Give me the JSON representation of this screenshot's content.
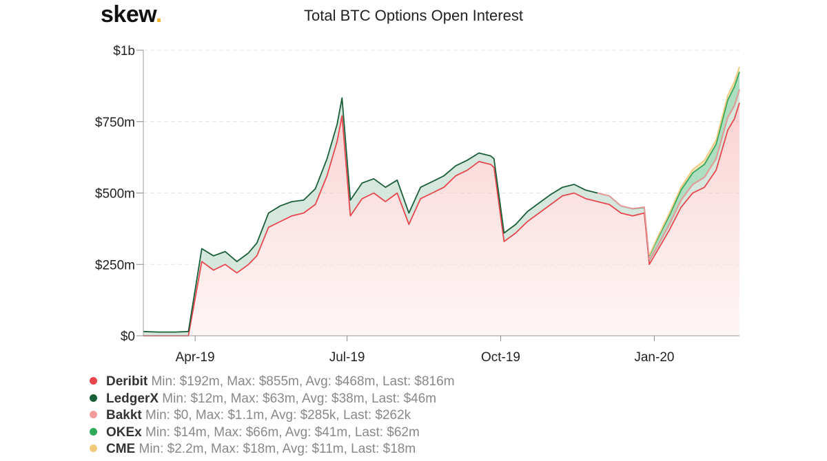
{
  "brand": {
    "logo_text": "skew",
    "logo_dot": ".",
    "dot_color": "#f0b429"
  },
  "chart_data": {
    "type": "area",
    "title": "Total BTC Options Open Interest",
    "stacked": true,
    "y_ticks": [
      "$0",
      "$250m",
      "$500m",
      "$750m",
      "$1b"
    ],
    "ylim": [
      0,
      1000
    ],
    "y_unit": "$m",
    "x_ticks": [
      "Apr-19",
      "Jul-19",
      "Oct-19",
      "Jan-20"
    ],
    "grid": "horizontal dashed",
    "legend_position": "bottom-left",
    "x": [
      "2019-03-01",
      "2019-03-10",
      "2019-03-20",
      "2019-03-28",
      "2019-04-05",
      "2019-04-12",
      "2019-04-19",
      "2019-04-26",
      "2019-05-03",
      "2019-05-08",
      "2019-05-15",
      "2019-05-22",
      "2019-05-29",
      "2019-06-05",
      "2019-06-12",
      "2019-06-19",
      "2019-06-25",
      "2019-06-28",
      "2019-07-03",
      "2019-07-10",
      "2019-07-17",
      "2019-07-24",
      "2019-07-31",
      "2019-08-07",
      "2019-08-14",
      "2019-08-21",
      "2019-08-28",
      "2019-09-04",
      "2019-09-11",
      "2019-09-18",
      "2019-09-25",
      "2019-09-27",
      "2019-10-03",
      "2019-10-10",
      "2019-10-17",
      "2019-10-24",
      "2019-10-31",
      "2019-11-07",
      "2019-11-14",
      "2019-11-21",
      "2019-11-28",
      "2019-12-05",
      "2019-12-12",
      "2019-12-19",
      "2019-12-26",
      "2019-12-29",
      "2020-01-03",
      "2020-01-10",
      "2020-01-17",
      "2020-01-24",
      "2020-01-31",
      "2020-02-07",
      "2020-02-14",
      "2020-02-18",
      "2020-02-21"
    ],
    "series": [
      {
        "name": "Deribit",
        "color": "#e8464c",
        "values": [
          0,
          0,
          0,
          0,
          260,
          230,
          250,
          220,
          250,
          280,
          380,
          400,
          420,
          430,
          460,
          560,
          680,
          770,
          420,
          480,
          500,
          470,
          500,
          390,
          480,
          500,
          520,
          560,
          580,
          610,
          600,
          590,
          330,
          360,
          400,
          430,
          460,
          490,
          500,
          480,
          470,
          460,
          430,
          420,
          430,
          250,
          300,
          370,
          450,
          500,
          520,
          580,
          720,
          760,
          816
        ]
      },
      {
        "name": "LedgerX",
        "color": "#1a5e38",
        "values": [
          15,
          13,
          13,
          15,
          45,
          50,
          45,
          40,
          40,
          45,
          50,
          55,
          50,
          45,
          55,
          60,
          60,
          63,
          55,
          55,
          50,
          50,
          45,
          40,
          40,
          40,
          40,
          35,
          35,
          30,
          30,
          30,
          30,
          30,
          35,
          35,
          35,
          30,
          30,
          30,
          30,
          30,
          25,
          25,
          20,
          15,
          15,
          20,
          25,
          30,
          35,
          40,
          45,
          46,
          46
        ]
      },
      {
        "name": "Bakkt",
        "color": "#f29b9b",
        "values": [
          0,
          0,
          0,
          0,
          0,
          0,
          0,
          0,
          0,
          0,
          0,
          0,
          0,
          0,
          0,
          0,
          0,
          0,
          0,
          0,
          0,
          0,
          0,
          0,
          0,
          0,
          0,
          0,
          0,
          0,
          0,
          0,
          0,
          0,
          0,
          0,
          0,
          0,
          0,
          0,
          0.1,
          0.2,
          0.3,
          0.5,
          0.8,
          1.1,
          0.5,
          0.4,
          0.3,
          0.3,
          0.3,
          0.3,
          0.3,
          0.26,
          0.262
        ]
      },
      {
        "name": "OKEx",
        "color": "#2fa85a",
        "values": [
          0,
          0,
          0,
          0,
          0,
          0,
          0,
          0,
          0,
          0,
          0,
          0,
          0,
          0,
          0,
          0,
          0,
          0,
          0,
          0,
          0,
          0,
          0,
          0,
          0,
          0,
          0,
          0,
          0,
          0,
          0,
          0,
          0,
          0,
          0,
          0,
          0,
          0,
          0,
          0,
          0,
          0,
          0,
          0,
          0,
          14,
          25,
          30,
          35,
          40,
          45,
          50,
          60,
          66,
          62
        ]
      },
      {
        "name": "CME",
        "color": "#f0c97a",
        "values": [
          0,
          0,
          0,
          0,
          0,
          0,
          0,
          0,
          0,
          0,
          0,
          0,
          0,
          0,
          0,
          0,
          0,
          0,
          0,
          0,
          0,
          0,
          0,
          0,
          0,
          0,
          0,
          0,
          0,
          0,
          0,
          0,
          0,
          0,
          0,
          0,
          0,
          0,
          0,
          0,
          0,
          0,
          0,
          0,
          0,
          2.2,
          5,
          8,
          10,
          12,
          14,
          15,
          16,
          18,
          18
        ]
      }
    ]
  },
  "legend": [
    {
      "name": "Deribit",
      "stats": "Min: $192m, Max: $855m, Avg: $468m, Last: $816m",
      "color": "#e8464c"
    },
    {
      "name": "LedgerX",
      "stats": "Min: $12m, Max: $63m, Avg: $38m, Last: $46m",
      "color": "#1a5e38"
    },
    {
      "name": "Bakkt",
      "stats": "Min: $0, Max: $1.1m, Avg: $285k, Last: $262k",
      "color": "#f29b9b"
    },
    {
      "name": "OKEx",
      "stats": "Min: $14m, Max: $66m, Avg: $41m, Last: $62m",
      "color": "#2fa85a"
    },
    {
      "name": "CME",
      "stats": "Min: $2.2m, Max: $18m, Avg: $11m, Last: $18m",
      "color": "#f0c97a"
    }
  ]
}
